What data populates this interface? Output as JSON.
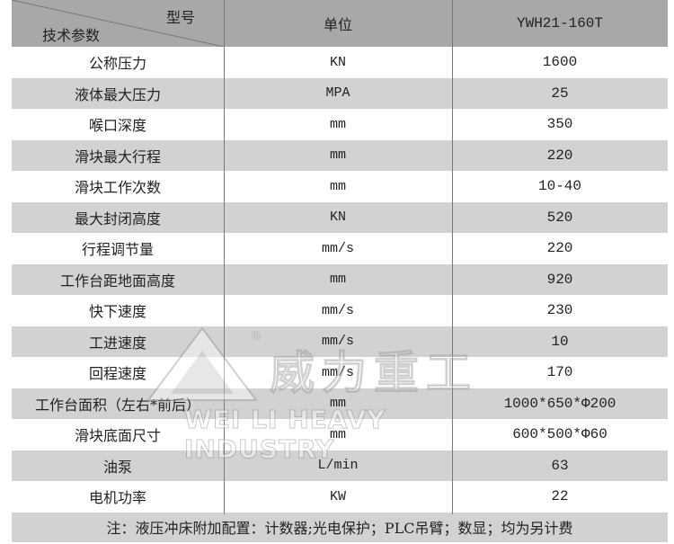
{
  "header": {
    "model_label": "型号",
    "param_label": "技术参数",
    "unit_label": "单位",
    "model_value": "YWH21-160T"
  },
  "rows": [
    {
      "param": "公称压力",
      "unit": "KN",
      "value": "1600"
    },
    {
      "param": "液体最大压力",
      "unit": "MPA",
      "value": "25"
    },
    {
      "param": "喉口深度",
      "unit": "mm",
      "value": "350"
    },
    {
      "param": "滑块最大行程",
      "unit": "mm",
      "value": "220"
    },
    {
      "param": "滑块工作次数",
      "unit": "mm",
      "value": "10-40"
    },
    {
      "param": "最大封闭高度",
      "unit": "KN",
      "value": "520"
    },
    {
      "param": "行程调节量",
      "unit": "mm/s",
      "value": "220"
    },
    {
      "param": "工作台距地面高度",
      "unit": "mm",
      "value": "920"
    },
    {
      "param": "快下速度",
      "unit": "mm/s",
      "value": "230"
    },
    {
      "param": "工进速度",
      "unit": "mm/s",
      "value": "10"
    },
    {
      "param": "回程速度",
      "unit": "mm/s",
      "value": "170"
    },
    {
      "param": "工作台面积（左右*前后）",
      "unit": "mm",
      "value": "1000*650*Φ200"
    },
    {
      "param": "滑块底面尺寸",
      "unit": "mm",
      "value": "600*500*Φ60"
    },
    {
      "param": "油泵",
      "unit": "L/min",
      "value": "63"
    },
    {
      "param": "电机功率",
      "unit": "KW",
      "value": "22"
    }
  ],
  "note": "注：液压冲床附加配置：计数器;光电保护；PLC吊臂；数显；均为另计费",
  "watermark": {
    "cn": "威力重工",
    "en": "WEI LI HEAVY INDUSTRY"
  }
}
